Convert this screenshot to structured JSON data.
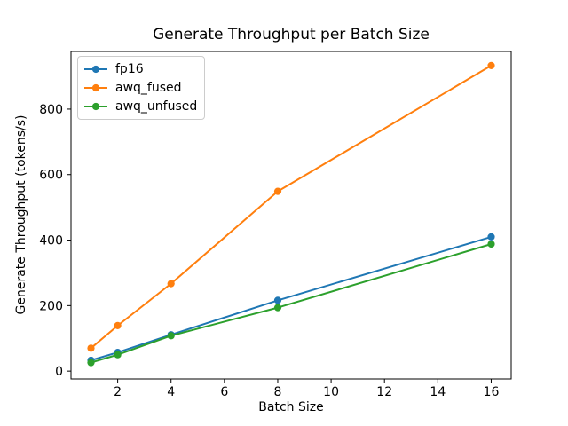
{
  "figure": {
    "background": "#ffffff",
    "axis_color": "#000000",
    "text_color": "#000000",
    "legend_border_color": "#cccccc"
  },
  "chart_data": {
    "type": "line",
    "title": "Generate Throughput per Batch Size",
    "xlabel": "Batch Size",
    "ylabel": "Generate Throughput (tokens/s)",
    "x": [
      1,
      2,
      4,
      8,
      16
    ],
    "series": [
      {
        "name": "fp16",
        "color": "#1f77b4",
        "values": [
          33,
          57,
          111,
          216,
          410
        ]
      },
      {
        "name": "awq_fused",
        "color": "#ff7f0e",
        "values": [
          70,
          139,
          267,
          549,
          933
        ]
      },
      {
        "name": "awq_unfused",
        "color": "#2ca02c",
        "values": [
          26,
          50,
          108,
          194,
          388
        ]
      }
    ],
    "x_ticks": [
      2,
      4,
      6,
      8,
      10,
      12,
      14,
      16
    ],
    "y_ticks": [
      0,
      200,
      400,
      600,
      800
    ],
    "xlim": [
      0.25,
      16.75
    ],
    "ylim": [
      -24,
      976
    ],
    "grid": false,
    "legend_position": "upper-left",
    "marker": "circle"
  }
}
